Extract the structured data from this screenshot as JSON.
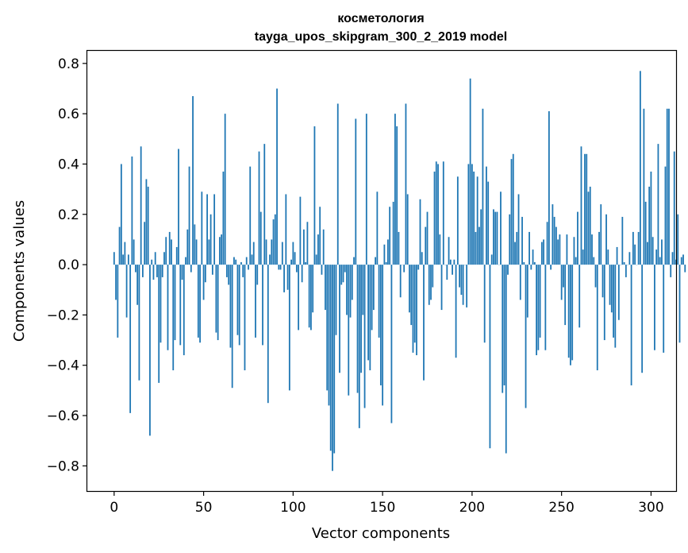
{
  "chart_data": {
    "type": "bar",
    "title": "косметология",
    "subtitle": "tayga_upos_skipgram_300_2_2019 model",
    "xlabel": "Vector components",
    "ylabel": "Components values",
    "xlim": [
      -15,
      314
    ],
    "ylim": [
      -0.9,
      0.85
    ],
    "xticks": [
      0,
      50,
      100,
      150,
      200,
      250,
      300
    ],
    "xtick_labels": [
      "0",
      "50",
      "100",
      "150",
      "200",
      "250",
      "300"
    ],
    "yticks": [
      -0.8,
      -0.6,
      -0.4,
      -0.2,
      0.0,
      0.2,
      0.4,
      0.6,
      0.8
    ],
    "ytick_labels": [
      "−0.8",
      "−0.6",
      "−0.4",
      "−0.2",
      "0.0",
      "0.2",
      "0.4",
      "0.6",
      "0.8"
    ],
    "bar_color": "#1f77b4",
    "grid": false,
    "series": [
      {
        "values": [
          0.05,
          -0.14,
          -0.29,
          0.15,
          0.4,
          0.04,
          0.09,
          -0.21,
          0.04,
          -0.59,
          0.43,
          0.1,
          -0.03,
          -0.16,
          -0.46,
          0.47,
          -0.05,
          0.17,
          0.34,
          0.31,
          -0.68,
          0.02,
          -0.06,
          0.05,
          -0.05,
          -0.47,
          -0.31,
          -0.05,
          0.05,
          0.11,
          -0.34,
          0.13,
          0.1,
          -0.42,
          -0.3,
          0.07,
          0.46,
          -0.32,
          -0.06,
          -0.36,
          0.03,
          0.14,
          0.39,
          -0.03,
          0.67,
          0.16,
          0.1,
          -0.29,
          -0.31,
          0.29,
          -0.14,
          -0.07,
          0.28,
          0.1,
          0.2,
          -0.04,
          0.28,
          -0.27,
          -0.3,
          0.11,
          0.12,
          0.37,
          0.6,
          -0.05,
          -0.08,
          -0.33,
          -0.49,
          0.03,
          0.02,
          -0.28,
          -0.32,
          0.01,
          -0.05,
          -0.42,
          0.03,
          -0.02,
          0.39,
          0.04,
          0.09,
          -0.29,
          -0.08,
          0.45,
          0.21,
          -0.32,
          0.48,
          0.1,
          -0.55,
          0.04,
          0.1,
          0.18,
          0.2,
          0.7,
          -0.02,
          -0.02,
          0.09,
          -0.11,
          0.28,
          -0.1,
          -0.5,
          0.02,
          0.09,
          0.05,
          -0.03,
          -0.26,
          0.27,
          -0.07,
          0.14,
          0.01,
          0.17,
          -0.25,
          -0.26,
          -0.19,
          0.55,
          0.04,
          0.12,
          0.23,
          -0.04,
          0.14,
          -0.18,
          -0.5,
          -0.56,
          -0.74,
          -0.82,
          -0.75,
          -0.28,
          0.64,
          -0.43,
          -0.08,
          -0.07,
          -0.03,
          -0.2,
          -0.52,
          -0.21,
          -0.14,
          0.03,
          0.58,
          -0.51,
          -0.65,
          -0.43,
          -0.2,
          -0.57,
          0.6,
          -0.38,
          -0.42,
          -0.26,
          -0.18,
          0.03,
          0.29,
          -0.29,
          -0.48,
          -0.56,
          0.08,
          0.01,
          0.1,
          0.23,
          -0.63,
          0.25,
          0.6,
          0.55,
          0.13,
          -0.13,
          0.0,
          -0.03,
          0.64,
          0.28,
          -0.19,
          -0.24,
          -0.35,
          -0.31,
          -0.36,
          -0.02,
          0.26,
          0.05,
          -0.46,
          0.15,
          0.21,
          -0.16,
          -0.14,
          -0.09,
          0.37,
          0.41,
          0.4,
          0.12,
          -0.18,
          0.41,
          0.0,
          -0.06,
          0.11,
          0.02,
          -0.04,
          0.02,
          -0.37,
          0.35,
          -0.09,
          -0.12,
          -0.16,
          0.0,
          -0.17,
          0.4,
          0.74,
          0.4,
          0.37,
          0.13,
          0.35,
          0.15,
          0.22,
          0.62,
          -0.31,
          0.39,
          0.33,
          -0.73,
          0.04,
          0.22,
          0.21,
          0.21,
          0.0,
          0.29,
          -0.51,
          -0.48,
          -0.75,
          -0.04,
          0.2,
          0.42,
          0.44,
          0.09,
          0.13,
          0.28,
          -0.14,
          0.19,
          0.01,
          -0.57,
          -0.21,
          0.13,
          -0.02,
          0.06,
          0.01,
          -0.36,
          -0.34,
          -0.29,
          0.09,
          0.1,
          -0.34,
          0.17,
          0.61,
          -0.02,
          0.24,
          0.19,
          0.15,
          0.1,
          0.12,
          -0.14,
          -0.09,
          -0.24,
          0.12,
          -0.37,
          -0.4,
          -0.38,
          0.11,
          0.03,
          0.21,
          -0.25,
          0.47,
          0.06,
          0.44,
          0.44,
          0.29,
          0.31,
          0.12,
          0.03,
          -0.09,
          -0.42,
          0.13,
          0.24,
          -0.13,
          -0.3,
          0.2,
          0.06,
          -0.16,
          -0.19,
          -0.29,
          -0.33,
          0.07,
          -0.22,
          0.0,
          0.19,
          0.01,
          -0.05,
          0.0,
          0.05,
          -0.48,
          0.13,
          0.08,
          0.0,
          0.13,
          0.77,
          -0.43,
          0.62,
          0.25,
          0.09,
          0.31,
          0.37,
          0.11,
          -0.34,
          0.06,
          0.48,
          0.03,
          0.1,
          -0.35,
          0.39,
          0.62,
          0.62,
          -0.05,
          0.05,
          0.45,
          0.02,
          0.2,
          -0.31,
          0.03,
          0.04,
          -0.03
        ]
      }
    ]
  }
}
